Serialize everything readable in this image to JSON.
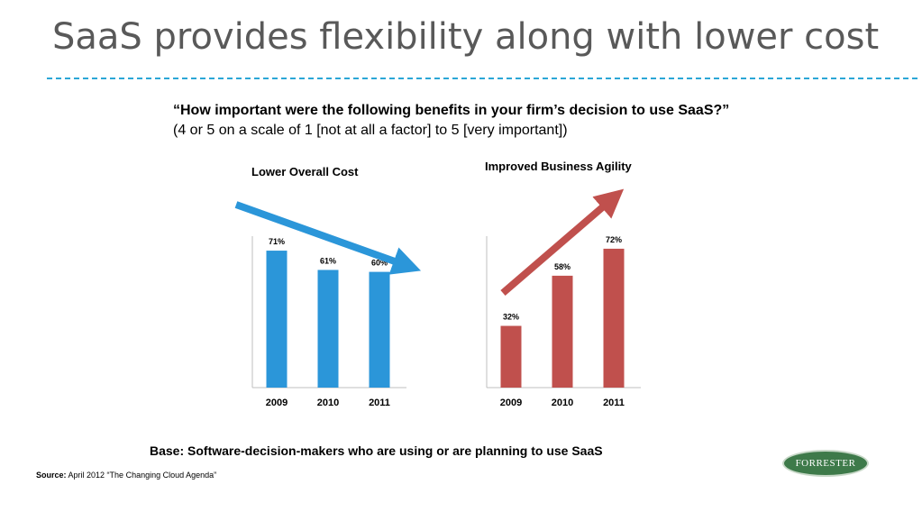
{
  "slide": {
    "title": "SaaS provides flexibility along with lower cost",
    "question": "“How important were the following benefits in your firm’s decision to use SaaS?”",
    "subquestion": "(4 or 5 on a scale of 1 [not at all a factor] to 5 [very important])",
    "base": "Base:  Software-decision-makers who are using or are planning to use SaaS",
    "source_label": "Source:",
    "source_text": "April 2012 “The Changing Cloud Agenda”",
    "logo_text": "FORRESTER"
  },
  "chart_data": [
    {
      "type": "bar",
      "title": "Lower Overall Cost",
      "categories": [
        "2009",
        "2010",
        "2011"
      ],
      "values": [
        71,
        61,
        60
      ],
      "labels": [
        "71%",
        "61%",
        "60%"
      ],
      "ylim": [
        0,
        100
      ],
      "color": "#2b96d9",
      "trend_arrow": "down"
    },
    {
      "type": "bar",
      "title": "Improved Business Agility",
      "categories": [
        "2009",
        "2010",
        "2011"
      ],
      "values": [
        32,
        58,
        72
      ],
      "labels": [
        "32%",
        "58%",
        "72%"
      ],
      "ylim": [
        0,
        100
      ],
      "color": "#c0504d",
      "trend_arrow": "up"
    }
  ]
}
